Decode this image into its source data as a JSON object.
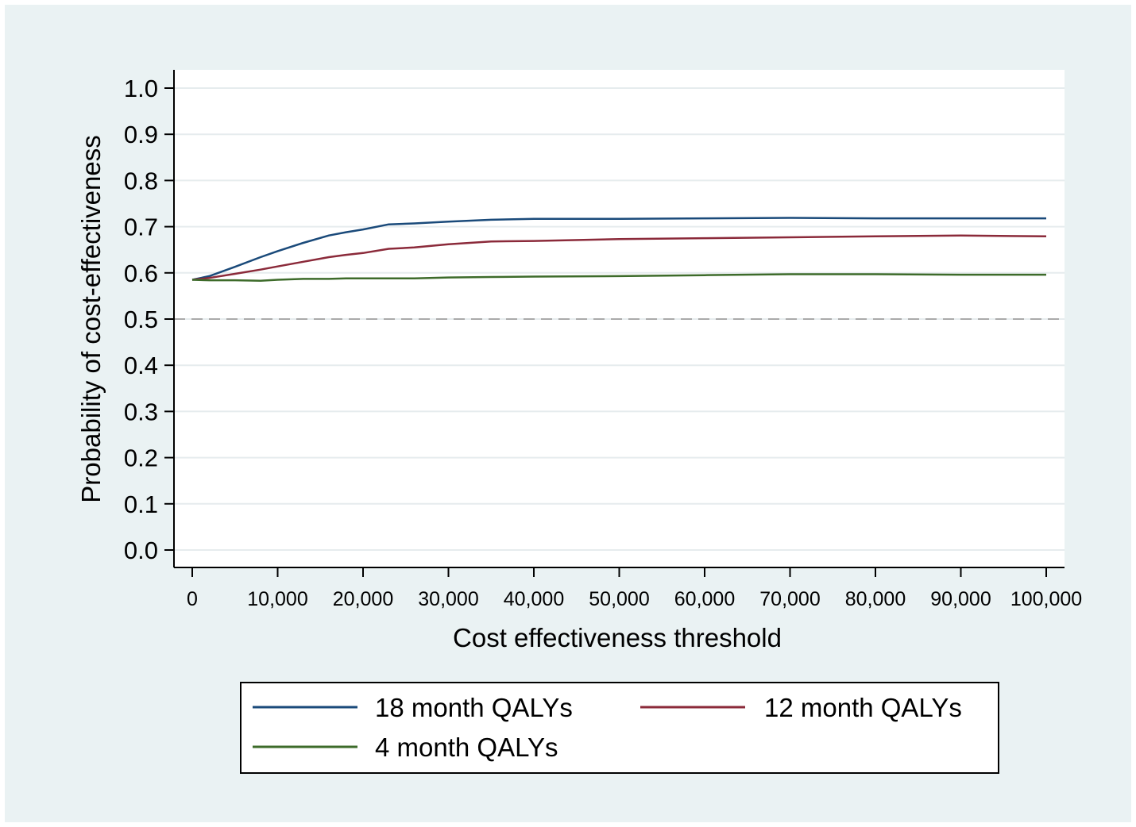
{
  "chart_data": {
    "type": "line",
    "title": "",
    "xlabel": "Cost effectiveness threshold",
    "ylabel": "Probability of cost-effectiveness",
    "xlim": [
      0,
      100000
    ],
    "ylim": [
      0,
      1.0
    ],
    "xticks": [
      0,
      10000,
      20000,
      30000,
      40000,
      50000,
      60000,
      70000,
      80000,
      90000,
      100000
    ],
    "xtick_labels": [
      "0",
      "10,000",
      "20,000",
      "30,000",
      "40,000",
      "50,000",
      "60,000",
      "70,000",
      "80,000",
      "90,000",
      "100,000"
    ],
    "yticks": [
      0,
      0.1,
      0.2,
      0.3,
      0.4,
      0.5,
      0.6,
      0.7,
      0.8,
      0.9,
      1.0
    ],
    "ytick_labels": [
      "0.0",
      "0.1",
      "0.2",
      "0.3",
      "0.4",
      "0.5",
      "0.6",
      "0.7",
      "0.8",
      "0.9",
      "1.0"
    ],
    "grid": true,
    "reference_line": {
      "y": 0.5,
      "style": "dashed",
      "color": "#aaaaaa"
    },
    "x": [
      0,
      2000,
      5000,
      8000,
      10000,
      13000,
      16000,
      18000,
      20000,
      23000,
      26000,
      30000,
      35000,
      40000,
      50000,
      60000,
      70000,
      80000,
      90000,
      100000
    ],
    "series": [
      {
        "name": "18 month QALYs",
        "color": "#1a4a7a",
        "values": [
          0.585,
          0.593,
          0.613,
          0.634,
          0.647,
          0.665,
          0.681,
          0.688,
          0.694,
          0.705,
          0.707,
          0.711,
          0.715,
          0.717,
          0.717,
          0.718,
          0.719,
          0.718,
          0.718,
          0.718
        ]
      },
      {
        "name": "12 month QALYs",
        "color": "#8b2a3a",
        "values": [
          0.585,
          0.589,
          0.598,
          0.607,
          0.614,
          0.624,
          0.634,
          0.639,
          0.643,
          0.652,
          0.655,
          0.662,
          0.668,
          0.669,
          0.673,
          0.675,
          0.677,
          0.679,
          0.681,
          0.679
        ]
      },
      {
        "name": "4 month QALYs",
        "color": "#3d6b2a",
        "values": [
          0.585,
          0.584,
          0.584,
          0.583,
          0.585,
          0.587,
          0.587,
          0.588,
          0.588,
          0.588,
          0.588,
          0.59,
          0.591,
          0.592,
          0.593,
          0.595,
          0.597,
          0.597,
          0.596,
          0.596
        ]
      }
    ],
    "legend_position": "bottom"
  }
}
